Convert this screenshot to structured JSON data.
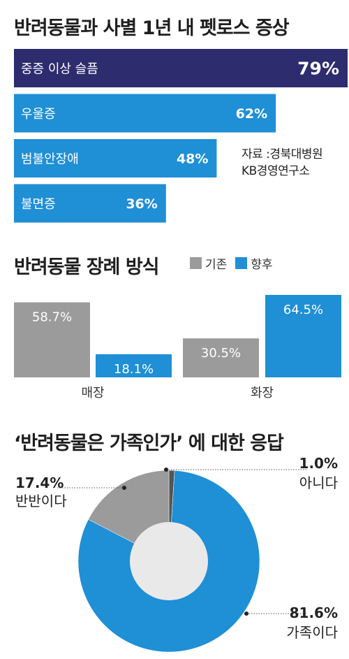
{
  "chart_data": [
    {
      "type": "bar",
      "orientation": "horizontal",
      "title": "반려동물과 사별 1년 내 펫로스 증상",
      "categories": [
        "중증 이상 슬픔",
        "우울증",
        "범불안장애",
        "불면증"
      ],
      "values": [
        79,
        62,
        48,
        36
      ],
      "value_labels": [
        "79%",
        "62%",
        "48%",
        "36%"
      ],
      "xlim": [
        0,
        79
      ],
      "colors": {
        "highlight": "#2d2c6e",
        "default": "#1f8fd6"
      },
      "source": [
        "자료 :경북대병원",
        "KB경영연구소"
      ]
    },
    {
      "type": "bar",
      "title": "반려동물 장례 방식",
      "categories": [
        "매장",
        "화장"
      ],
      "series": [
        {
          "name": "기존",
          "values": [
            58.7,
            30.5
          ],
          "labels": [
            "58.7%",
            "30.5%"
          ],
          "color": "#9b9b9b"
        },
        {
          "name": "향후",
          "values": [
            18.1,
            64.5
          ],
          "labels": [
            "18.1%",
            "64.5%"
          ],
          "color": "#1f8fd6"
        }
      ],
      "ylim": [
        0,
        64.5
      ],
      "legend": "top-right"
    },
    {
      "type": "pie",
      "style": "donut",
      "title": "‘반려동물은 가족인가’ 에 대한 응답",
      "slices": [
        {
          "label": "아니다",
          "value": 1.0,
          "value_label": "1.0%",
          "color": "#555555"
        },
        {
          "label": "가족이다",
          "value": 81.6,
          "value_label": "81.6%",
          "color": "#1f8fd6"
        },
        {
          "label": "반반이다",
          "value": 17.4,
          "value_label": "17.4%",
          "color": "#9b9b9b"
        }
      ]
    }
  ]
}
